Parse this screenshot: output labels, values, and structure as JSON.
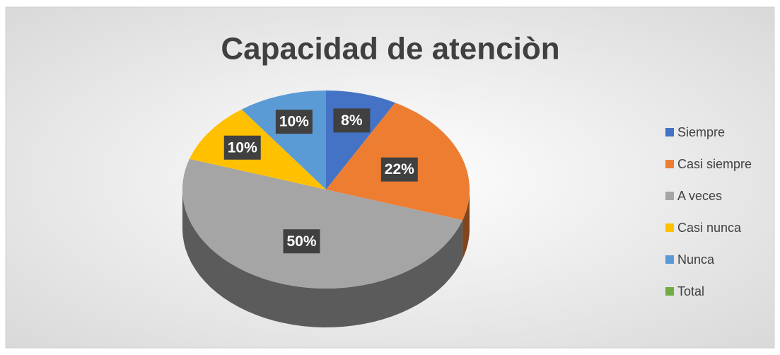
{
  "chart_data": {
    "type": "pie",
    "title": "Capacidad de atenciòn",
    "categories": [
      "Siempre",
      "Casi siempre",
      "A veces",
      "Casi nunca",
      "Nunca",
      "Total"
    ],
    "values": [
      8,
      22,
      50,
      10,
      10,
      0
    ],
    "value_labels": [
      "8%",
      "22%",
      "50%",
      "10%",
      "10%",
      null
    ],
    "colors": [
      "#4472c4",
      "#ed7d31",
      "#a5a5a5",
      "#ffc000",
      "#5b9bd5",
      "#70ad47"
    ],
    "legend": "right"
  }
}
